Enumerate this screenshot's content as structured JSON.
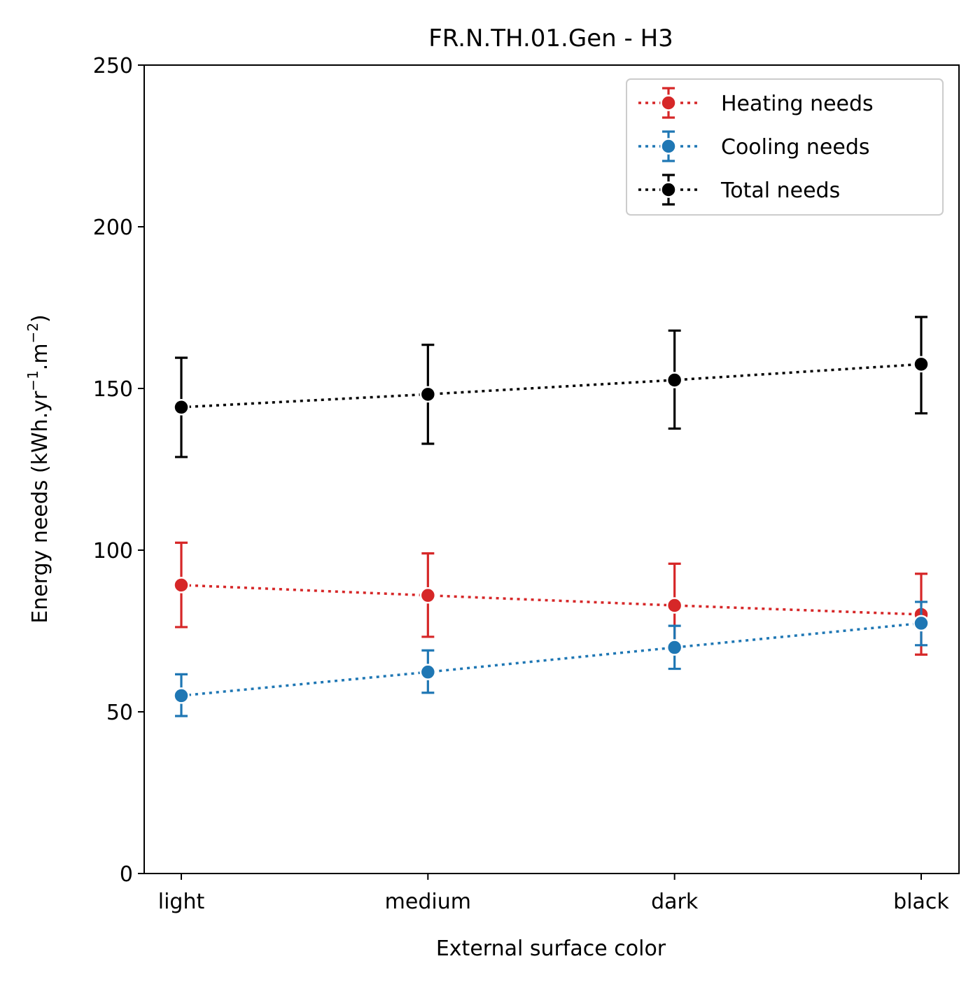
{
  "chart_data": {
    "type": "line",
    "title": "FR.N.TH.01.Gen - H3",
    "xlabel": "External surface color",
    "ylabel_main": "Energy needs (kWh.yr",
    "ylabel_sup1": "−1",
    "ylabel_mid": ".m",
    "ylabel_sup2": "−2",
    "ylabel_end": ")",
    "categories": [
      "light",
      "medium",
      "dark",
      "black"
    ],
    "ylim": [
      0,
      250
    ],
    "yticks": [
      0,
      50,
      100,
      150,
      200,
      250
    ],
    "ytick_labels": [
      "0",
      "50",
      "100",
      "150",
      "200",
      "250"
    ],
    "grid": false,
    "legend_position": "top-right",
    "line_style": "dotted",
    "series": [
      {
        "name": "Heating needs",
        "color": "#d62728",
        "values": [
          89.2,
          86.0,
          82.9,
          80.1
        ],
        "err_low": [
          76.2,
          73.2,
          70.2,
          67.7
        ],
        "err_high": [
          102.3,
          99.0,
          95.8,
          92.7
        ]
      },
      {
        "name": "Cooling needs",
        "color": "#1f77b4",
        "values": [
          55.0,
          62.3,
          69.9,
          77.4
        ],
        "err_low": [
          48.7,
          55.9,
          63.3,
          70.6
        ],
        "err_high": [
          61.6,
          69.0,
          76.6,
          84.0
        ]
      },
      {
        "name": "Total needs",
        "color": "#000000",
        "values": [
          144.2,
          148.2,
          152.6,
          157.5
        ],
        "err_low": [
          128.8,
          132.9,
          137.6,
          142.3
        ],
        "err_high": [
          159.5,
          163.5,
          167.9,
          172.1
        ]
      }
    ]
  }
}
